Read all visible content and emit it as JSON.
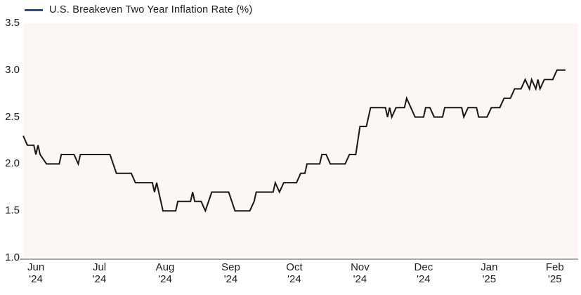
{
  "chart_data": {
    "type": "line",
    "title": "U.S. Breakeven Two Year Inflation Rate (%)",
    "xlabel": "",
    "ylabel": "",
    "ylim": [
      1.0,
      3.5
    ],
    "yticks": [
      "3.5",
      "3.0",
      "2.5",
      "2.0",
      "1.5",
      "1.0"
    ],
    "ytick_values": [
      3.5,
      3.0,
      2.5,
      2.0,
      1.5,
      1.0
    ],
    "x_range": [
      "2024-05-26",
      "2025-02-12"
    ],
    "xticks": [
      {
        "month": "Jun",
        "year": "'24",
        "date": "2024-06-01"
      },
      {
        "month": "Jul",
        "year": "'24",
        "date": "2024-07-01"
      },
      {
        "month": "Aug",
        "year": "'24",
        "date": "2024-08-01"
      },
      {
        "month": "Sep",
        "year": "'24",
        "date": "2024-09-01"
      },
      {
        "month": "Oct",
        "year": "'24",
        "date": "2024-10-01"
      },
      {
        "month": "Nov",
        "year": "'24",
        "date": "2024-11-01"
      },
      {
        "month": "Dec",
        "year": "'24",
        "date": "2024-12-01"
      },
      {
        "month": "Jan",
        "year": "'25",
        "date": "2025-01-01"
      },
      {
        "month": "Feb",
        "year": "'25",
        "date": "2025-02-01"
      }
    ],
    "grid": false,
    "legend_position": "top-left",
    "series": [
      {
        "name": "U.S. Breakeven Two Year Inflation Rate (%)",
        "points": [
          [
            "2024-05-26",
            2.3
          ],
          [
            "2024-05-28",
            2.2
          ],
          [
            "2024-05-31",
            2.2
          ],
          [
            "2024-06-01",
            2.1
          ],
          [
            "2024-06-02",
            2.2
          ],
          [
            "2024-06-03",
            2.1
          ],
          [
            "2024-06-06",
            2.0
          ],
          [
            "2024-06-12",
            2.0
          ],
          [
            "2024-06-13",
            2.1
          ],
          [
            "2024-06-19",
            2.1
          ],
          [
            "2024-06-21",
            2.0
          ],
          [
            "2024-06-22",
            2.1
          ],
          [
            "2024-07-06",
            2.1
          ],
          [
            "2024-07-09",
            1.9
          ],
          [
            "2024-07-16",
            1.9
          ],
          [
            "2024-07-18",
            1.8
          ],
          [
            "2024-07-26",
            1.8
          ],
          [
            "2024-07-27",
            1.7
          ],
          [
            "2024-07-28",
            1.8
          ],
          [
            "2024-07-31",
            1.5
          ],
          [
            "2024-08-06",
            1.5
          ],
          [
            "2024-08-07",
            1.6
          ],
          [
            "2024-08-13",
            1.6
          ],
          [
            "2024-08-14",
            1.7
          ],
          [
            "2024-08-15",
            1.6
          ],
          [
            "2024-08-18",
            1.6
          ],
          [
            "2024-08-20",
            1.5
          ],
          [
            "2024-08-23",
            1.7
          ],
          [
            "2024-08-31",
            1.7
          ],
          [
            "2024-09-03",
            1.5
          ],
          [
            "2024-09-10",
            1.5
          ],
          [
            "2024-09-12",
            1.6
          ],
          [
            "2024-09-13",
            1.7
          ],
          [
            "2024-09-21",
            1.7
          ],
          [
            "2024-09-22",
            1.8
          ],
          [
            "2024-09-24",
            1.7
          ],
          [
            "2024-09-26",
            1.8
          ],
          [
            "2024-10-02",
            1.8
          ],
          [
            "2024-10-04",
            1.9
          ],
          [
            "2024-10-06",
            1.9
          ],
          [
            "2024-10-07",
            2.0
          ],
          [
            "2024-10-13",
            2.0
          ],
          [
            "2024-10-14",
            2.1
          ],
          [
            "2024-10-16",
            2.1
          ],
          [
            "2024-10-18",
            2.0
          ],
          [
            "2024-10-25",
            2.0
          ],
          [
            "2024-10-27",
            2.1
          ],
          [
            "2024-10-30",
            2.1
          ],
          [
            "2024-11-01",
            2.4
          ],
          [
            "2024-11-04",
            2.4
          ],
          [
            "2024-11-06",
            2.6
          ],
          [
            "2024-11-13",
            2.6
          ],
          [
            "2024-11-14",
            2.5
          ],
          [
            "2024-11-15",
            2.6
          ],
          [
            "2024-11-16",
            2.5
          ],
          [
            "2024-11-18",
            2.6
          ],
          [
            "2024-11-22",
            2.6
          ],
          [
            "2024-11-23",
            2.7
          ],
          [
            "2024-11-25",
            2.6
          ],
          [
            "2024-11-27",
            2.5
          ],
          [
            "2024-12-01",
            2.5
          ],
          [
            "2024-12-02",
            2.6
          ],
          [
            "2024-12-04",
            2.6
          ],
          [
            "2024-12-06",
            2.5
          ],
          [
            "2024-12-10",
            2.5
          ],
          [
            "2024-12-11",
            2.6
          ],
          [
            "2024-12-19",
            2.6
          ],
          [
            "2024-12-20",
            2.5
          ],
          [
            "2024-12-22",
            2.6
          ],
          [
            "2024-12-26",
            2.6
          ],
          [
            "2024-12-27",
            2.5
          ],
          [
            "2024-12-31",
            2.5
          ],
          [
            "2025-01-02",
            2.6
          ],
          [
            "2025-01-06",
            2.6
          ],
          [
            "2025-01-08",
            2.7
          ],
          [
            "2025-01-11",
            2.7
          ],
          [
            "2025-01-13",
            2.8
          ],
          [
            "2025-01-16",
            2.8
          ],
          [
            "2025-01-18",
            2.9
          ],
          [
            "2025-01-20",
            2.8
          ],
          [
            "2025-01-21",
            2.9
          ],
          [
            "2025-01-23",
            2.8
          ],
          [
            "2025-01-24",
            2.9
          ],
          [
            "2025-01-25",
            2.8
          ],
          [
            "2025-01-27",
            2.9
          ],
          [
            "2025-01-31",
            2.9
          ],
          [
            "2025-02-02",
            3.0
          ],
          [
            "2025-02-06",
            3.0
          ]
        ]
      }
    ],
    "colors": {
      "line": "#171717",
      "legend_swatch": "#2e4d7e",
      "plot_background": "#fcf6f5",
      "axis_line": "#a8a8a8",
      "tick_text": "#1c1c1c"
    }
  }
}
